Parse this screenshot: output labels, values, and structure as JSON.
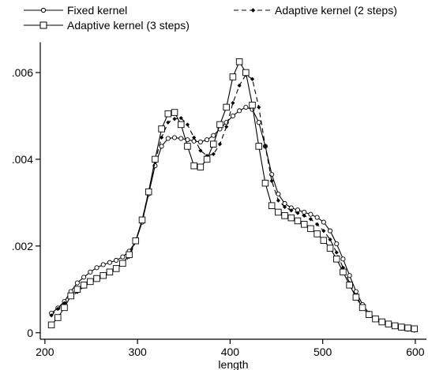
{
  "chart_data": {
    "type": "line",
    "title": "",
    "xlabel": "length",
    "ylabel": "",
    "xlim": [
      195,
      612
    ],
    "ylim": [
      -0.00015,
      0.0068
    ],
    "x_ticks": [
      200,
      300,
      400,
      500,
      600
    ],
    "y_ticks": [
      0,
      0.002,
      0.004,
      0.006
    ],
    "x_tick_labels": [
      "200",
      "300",
      "400",
      "500",
      "600"
    ],
    "y_tick_labels": [
      "0",
      ".002",
      ".004",
      ".006"
    ],
    "grid": false,
    "legend_position": "top",
    "series": [
      {
        "name": "Fixed kernel",
        "marker": "circle",
        "dash": "solid",
        "x": [
          207,
          214,
          221,
          228,
          235,
          242,
          249,
          256,
          263,
          270,
          277,
          284,
          291,
          298,
          305,
          312,
          319,
          326,
          333,
          340,
          347,
          354,
          361,
          368,
          375,
          382,
          389,
          396,
          403,
          410,
          417,
          424,
          431,
          438,
          445,
          452,
          459,
          466,
          473,
          480,
          487,
          494,
          501,
          508,
          515,
          522,
          529,
          536,
          543,
          550,
          557,
          564,
          571,
          578,
          585,
          592,
          599
        ],
        "values": [
          0.00045,
          0.00057,
          0.00072,
          0.00095,
          0.00115,
          0.00128,
          0.0014,
          0.0015,
          0.00157,
          0.00162,
          0.00167,
          0.00175,
          0.00188,
          0.0021,
          0.00255,
          0.0032,
          0.00385,
          0.0043,
          0.00448,
          0.0045,
          0.00448,
          0.00445,
          0.00442,
          0.0044,
          0.00445,
          0.00455,
          0.0047,
          0.00485,
          0.005,
          0.00512,
          0.0052,
          0.00515,
          0.00485,
          0.0043,
          0.00365,
          0.0032,
          0.00298,
          0.00288,
          0.00283,
          0.00278,
          0.00273,
          0.00266,
          0.00255,
          0.00235,
          0.00205,
          0.0017,
          0.00132,
          0.00095,
          0.00065,
          0.00045,
          0.00032,
          0.00024,
          0.00018,
          0.00014,
          0.00011,
          8e-05,
          6e-05
        ]
      },
      {
        "name": "Adaptive kernel (2 steps)",
        "marker": "diamond",
        "dash": "dashed",
        "x": [
          207,
          214,
          221,
          228,
          235,
          242,
          249,
          256,
          263,
          270,
          277,
          284,
          291,
          298,
          305,
          312,
          319,
          326,
          333,
          340,
          347,
          354,
          361,
          368,
          375,
          382,
          389,
          396,
          403,
          410,
          417,
          424,
          431,
          438,
          445,
          452,
          459,
          466,
          473,
          480,
          487,
          494,
          501,
          508,
          515,
          522,
          529,
          536,
          543,
          550,
          557,
          564,
          571,
          578,
          585,
          592,
          599
        ],
        "values": [
          0.0004,
          0.00055,
          0.00068,
          0.00082,
          0.00094,
          0.00106,
          0.00115,
          0.00122,
          0.0013,
          0.00138,
          0.00146,
          0.00158,
          0.00175,
          0.0021,
          0.0026,
          0.00325,
          0.00395,
          0.0045,
          0.00485,
          0.00493,
          0.00495,
          0.0048,
          0.0045,
          0.0042,
          0.00408,
          0.00412,
          0.00435,
          0.00475,
          0.0053,
          0.0057,
          0.00595,
          0.00585,
          0.0052,
          0.0043,
          0.0035,
          0.00305,
          0.0029,
          0.00282,
          0.00276,
          0.0027,
          0.00262,
          0.0025,
          0.00235,
          0.00215,
          0.00185,
          0.0015,
          0.00115,
          0.00085,
          0.0006,
          0.00042,
          0.0003,
          0.00022,
          0.00017,
          0.00013,
          0.0001,
          8e-05,
          6e-05
        ]
      },
      {
        "name": "Adaptive kernel (3 steps)",
        "marker": "square",
        "dash": "solid",
        "x": [
          207,
          214,
          221,
          228,
          235,
          242,
          249,
          256,
          263,
          270,
          277,
          284,
          291,
          298,
          305,
          312,
          319,
          326,
          333,
          340,
          347,
          354,
          361,
          368,
          375,
          382,
          389,
          396,
          403,
          410,
          417,
          424,
          431,
          438,
          445,
          452,
          459,
          466,
          473,
          480,
          487,
          494,
          501,
          508,
          515,
          522,
          529,
          536,
          543,
          550,
          557,
          564,
          571,
          578,
          585,
          592,
          599
        ],
        "values": [
          0.00018,
          0.00035,
          0.00058,
          0.00085,
          0.001,
          0.0011,
          0.00118,
          0.00125,
          0.00132,
          0.0014,
          0.00148,
          0.0016,
          0.0018,
          0.00212,
          0.0026,
          0.00325,
          0.004,
          0.0047,
          0.00505,
          0.00508,
          0.0048,
          0.0043,
          0.00385,
          0.00382,
          0.004,
          0.00435,
          0.0048,
          0.0052,
          0.0059,
          0.00625,
          0.006,
          0.00525,
          0.0043,
          0.00345,
          0.00293,
          0.00278,
          0.0027,
          0.00265,
          0.00258,
          0.0025,
          0.0024,
          0.00228,
          0.00213,
          0.00195,
          0.0017,
          0.0014,
          0.0011,
          0.00082,
          0.00058,
          0.00042,
          0.00032,
          0.00025,
          0.0002,
          0.00016,
          0.00013,
          0.00011,
          9e-05
        ]
      }
    ]
  }
}
